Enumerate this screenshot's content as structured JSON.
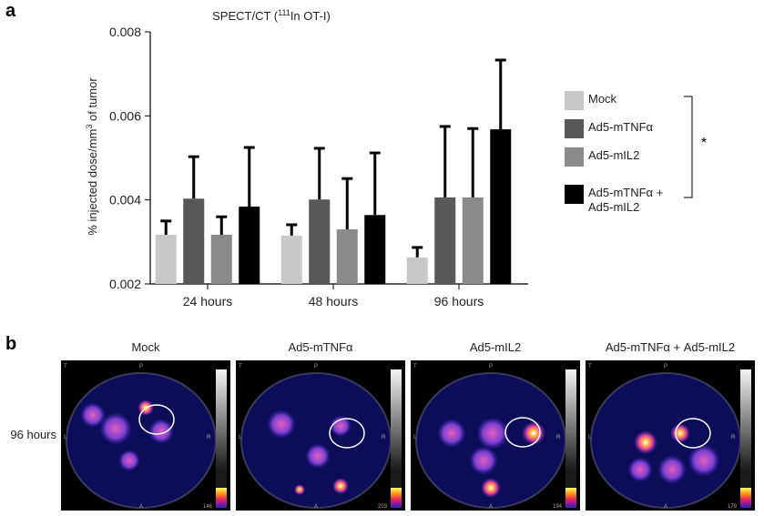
{
  "panel_labels": [
    "a",
    "b"
  ],
  "chart_data": {
    "type": "bar",
    "title": {
      "text": "SPECT/CT (",
      "superscript": "111",
      "rest": "In OT-I)"
    },
    "y_label": {
      "text": "% injected dose/mm",
      "superscript": "3",
      "rest": " of tumor"
    },
    "categories": [
      "24 hours",
      "48 hours",
      "96 hours"
    ],
    "series": [
      {
        "name": "Mock",
        "color": "#c8c8c8",
        "values": [
          0.00317,
          0.00315,
          0.00263
        ],
        "errors": [
          0.00035,
          0.00028,
          0.00026
        ]
      },
      {
        "name": "Ad5-mTNFα",
        "color": "#585858",
        "values": [
          0.00403,
          0.00401,
          0.00406
        ],
        "errors": [
          0.00102,
          0.00124,
          0.00171
        ]
      },
      {
        "name": "Ad5-mIL2",
        "color": "#8a8a8a",
        "values": [
          0.00317,
          0.0033,
          0.00406
        ],
        "errors": [
          0.00045,
          0.00123,
          0.00166
        ]
      },
      {
        "name": "Ad5-mTNFα + Ad5-mIL2",
        "color": "#000000",
        "values": [
          0.00384,
          0.00364,
          0.00568
        ],
        "errors": [
          0.00143,
          0.0015,
          0.00167
        ]
      }
    ],
    "ylim": [
      0.002,
      0.008
    ],
    "yticks": [
      0.002,
      0.004,
      0.006,
      0.008
    ],
    "legend": "right",
    "significance": "*"
  },
  "images": {
    "row_label": "96 hours",
    "orientation": {
      "top_left": "T",
      "top": "P",
      "left": "L",
      "right": "R",
      "bottom": "A"
    },
    "panels": [
      {
        "title": "Mock",
        "scale_max": 146
      },
      {
        "title": "Ad5-mTNFα",
        "scale_max": 203
      },
      {
        "title": "Ad5-mIL2",
        "scale_max": 194
      },
      {
        "title": "Ad5-mTNFα + Ad5-mIL2",
        "scale_max": 179
      }
    ]
  }
}
